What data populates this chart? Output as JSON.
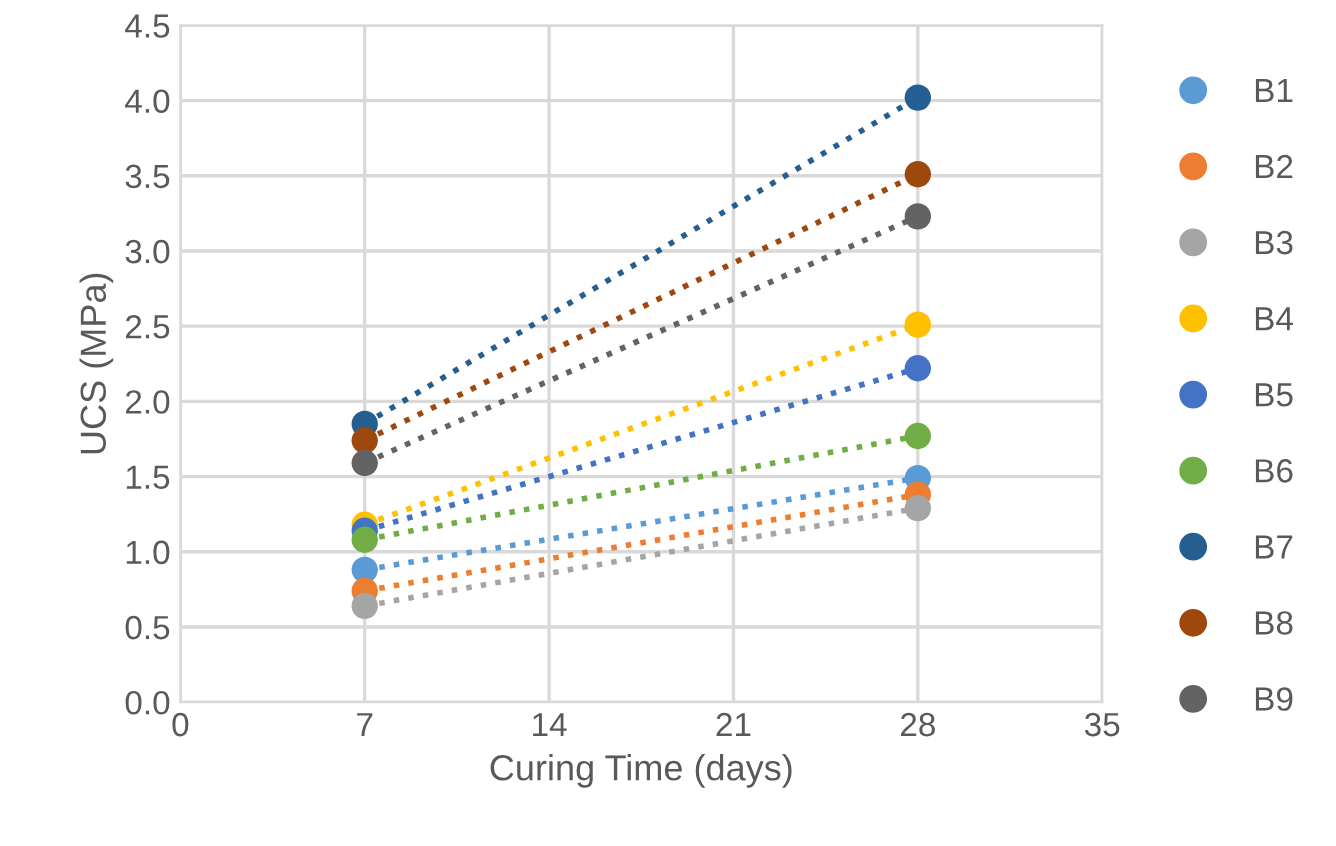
{
  "chart_data": {
    "type": "line",
    "xlabel": "Curing Time (days)",
    "ylabel": "UCS (MPa)",
    "x": [
      7,
      28
    ],
    "series": [
      {
        "name": "B1",
        "color": "#5b9bd5",
        "values": [
          0.88,
          1.49
        ]
      },
      {
        "name": "B2",
        "color": "#ed7d31",
        "values": [
          0.74,
          1.38
        ]
      },
      {
        "name": "B3",
        "color": "#a5a5a5",
        "values": [
          0.64,
          1.29
        ]
      },
      {
        "name": "B4",
        "color": "#ffc000",
        "values": [
          1.18,
          2.51
        ]
      },
      {
        "name": "B5",
        "color": "#4472c4",
        "values": [
          1.14,
          2.22
        ]
      },
      {
        "name": "B6",
        "color": "#70ad47",
        "values": [
          1.08,
          1.77
        ]
      },
      {
        "name": "B7",
        "color": "#255e91",
        "values": [
          1.85,
          4.02
        ]
      },
      {
        "name": "B8",
        "color": "#9e480e",
        "values": [
          1.74,
          3.51
        ]
      },
      {
        "name": "B9",
        "color": "#636363",
        "values": [
          1.59,
          3.23
        ]
      }
    ],
    "xlim": [
      0,
      35
    ],
    "xticks": [
      0,
      7,
      14,
      21,
      28,
      35
    ],
    "ylim": [
      0,
      4.5
    ],
    "yticks": [
      {
        "value": 0,
        "label": "0.0"
      },
      {
        "value": 0.5,
        "label": "0.5"
      },
      {
        "value": 1,
        "label": "1.0"
      },
      {
        "value": 1.5,
        "label": "1.5"
      },
      {
        "value": 2,
        "label": "2.0"
      },
      {
        "value": 2.5,
        "label": "2.5"
      },
      {
        "value": 3,
        "label": "3.0"
      },
      {
        "value": 3.5,
        "label": "3.5"
      },
      {
        "value": 4,
        "label": "4.0"
      },
      {
        "value": 4.5,
        "label": "4.5"
      }
    ],
    "grid": true,
    "legend": "right",
    "marker": "circle",
    "line_style": "dotted"
  }
}
